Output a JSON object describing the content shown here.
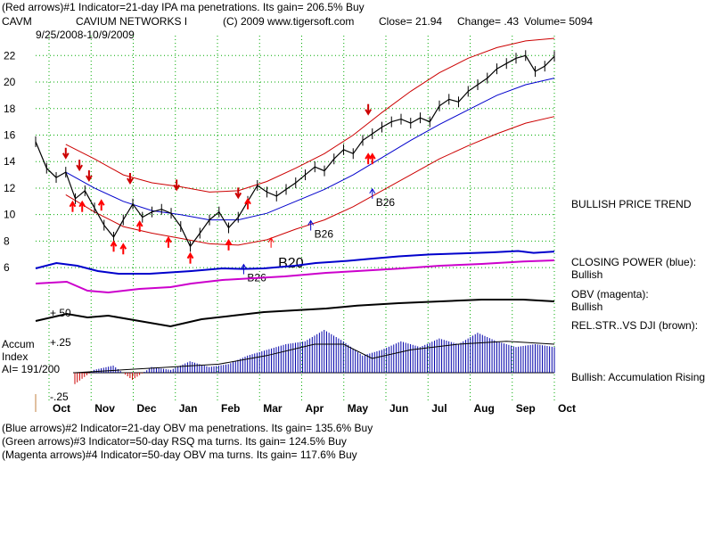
{
  "header": {
    "line1": "(Red arrows)#1 Indicator=21-day IPA ma penetrations. Its gain= 206.5% Buy",
    "symbol": "CAVM",
    "company": "CAVIUM NETWORKS I",
    "copyright": "(C) 2009 www.tigersoft.com",
    "close": "Close= 21.94",
    "change": "Change= .43",
    "volume": "Volume= 5094",
    "date_range": "9/25/2008-10/9/2009"
  },
  "footer": {
    "line1": "(Blue arrows)#2 Indicator=21-day OBV ma penetrations. Its gain= 135.6% Buy",
    "line2": "(Green arrows)#3 Indicator=50-day RSQ ma turns. Its gain= 124.5% Buy",
    "line3": "(Magenta arrows)#4 Indicator=50-day OBV ma turns. Its gain= 117.6% Buy"
  },
  "labels": {
    "price_trend": "BULLISH PRICE TREND",
    "closing_power": "CLOSING POWER (blue):",
    "closing_power_state": "Bullish",
    "obv": "OBV (magenta):",
    "obv_state": "Bullish",
    "relstr": "REL.STR..VS DJI (brown):",
    "accum_title1": "Accum",
    "accum_title2": "Index",
    "ai_value": "AI= 191/200",
    "accum_state": "Bullish: Accumulation Rising",
    "accum_plus50": "+.50",
    "accum_plus25": "+.25",
    "accum_minus25": "-.25"
  },
  "colors": {
    "price": "#000000",
    "bands": "#cc0000",
    "ma": "#0000cc",
    "closing_power": "#0000cc",
    "obv": "#cc00cc",
    "relstr": "#000000",
    "grid": "#00aa00",
    "buy_arrow": "#ff0000",
    "sell_arrow": "#cc0000",
    "blue_arrow": "#0000cc",
    "accum": "#0000aa"
  },
  "chart_data": {
    "type": "line",
    "ylim": [
      5,
      23.5
    ],
    "yticks": [
      6,
      8,
      10,
      12,
      14,
      16,
      18,
      20,
      22
    ],
    "months": [
      "Oct",
      "Nov",
      "Dec",
      "Jan",
      "Feb",
      "Mar",
      "Apr",
      "May",
      "Jun",
      "Jul",
      "Aug",
      "Sep",
      "Oct"
    ],
    "x_start": "2008-09-25",
    "x_end": "2009-10-09",
    "price": {
      "name": "",
      "points": [
        [
          "2008-09-25",
          15.5
        ],
        [
          "2008-10-03",
          13.5
        ],
        [
          "2008-10-10",
          12.8
        ],
        [
          "2008-10-17",
          13.2
        ],
        [
          "2008-10-24",
          11.2
        ],
        [
          "2008-10-31",
          11.8
        ],
        [
          "2008-11-07",
          10.5
        ],
        [
          "2008-11-14",
          9.2
        ],
        [
          "2008-11-21",
          8.3
        ],
        [
          "2008-11-28",
          9.6
        ],
        [
          "2008-12-05",
          10.8
        ],
        [
          "2008-12-12",
          9.8
        ],
        [
          "2008-12-19",
          10.2
        ],
        [
          "2008-12-26",
          10.4
        ],
        [
          "2009-01-02",
          10.1
        ],
        [
          "2009-01-09",
          9.1
        ],
        [
          "2009-01-16",
          7.6
        ],
        [
          "2009-01-23",
          8.6
        ],
        [
          "2009-01-30",
          9.6
        ],
        [
          "2009-02-06",
          10.2
        ],
        [
          "2009-02-13",
          9.0
        ],
        [
          "2009-02-20",
          9.8
        ],
        [
          "2009-02-27",
          11.0
        ],
        [
          "2009-03-06",
          12.2
        ],
        [
          "2009-03-13",
          11.7
        ],
        [
          "2009-03-20",
          11.4
        ],
        [
          "2009-03-27",
          11.9
        ],
        [
          "2009-04-03",
          12.4
        ],
        [
          "2009-04-10",
          13.0
        ],
        [
          "2009-04-17",
          13.6
        ],
        [
          "2009-04-24",
          13.3
        ],
        [
          "2009-05-01",
          14.2
        ],
        [
          "2009-05-08",
          14.9
        ],
        [
          "2009-05-15",
          14.6
        ],
        [
          "2009-05-22",
          15.6
        ],
        [
          "2009-05-29",
          16.1
        ],
        [
          "2009-06-05",
          16.6
        ],
        [
          "2009-06-12",
          17.0
        ],
        [
          "2009-06-19",
          17.2
        ],
        [
          "2009-06-26",
          16.9
        ],
        [
          "2009-07-03",
          17.3
        ],
        [
          "2009-07-10",
          17.0
        ],
        [
          "2009-07-17",
          18.2
        ],
        [
          "2009-07-24",
          18.7
        ],
        [
          "2009-07-31",
          18.5
        ],
        [
          "2009-08-07",
          19.3
        ],
        [
          "2009-08-14",
          19.8
        ],
        [
          "2009-08-21",
          20.3
        ],
        [
          "2009-08-28",
          21.0
        ],
        [
          "2009-09-04",
          21.4
        ],
        [
          "2009-09-11",
          21.8
        ],
        [
          "2009-09-18",
          22.0
        ],
        [
          "2009-09-25",
          20.8
        ],
        [
          "2009-10-02",
          21.2
        ],
        [
          "2009-10-09",
          21.94
        ]
      ]
    },
    "ma": {
      "name": "",
      "points": [
        [
          "2008-10-17",
          13.2
        ],
        [
          "2008-11-07",
          12.0
        ],
        [
          "2008-11-28",
          11.0
        ],
        [
          "2008-12-19",
          10.3
        ],
        [
          "2009-01-09",
          10.0
        ],
        [
          "2009-01-30",
          9.6
        ],
        [
          "2009-02-20",
          9.6
        ],
        [
          "2009-03-13",
          10.1
        ],
        [
          "2009-04-03",
          11.0
        ],
        [
          "2009-04-24",
          11.9
        ],
        [
          "2009-05-15",
          13.0
        ],
        [
          "2009-06-05",
          14.3
        ],
        [
          "2009-06-26",
          15.6
        ],
        [
          "2009-07-17",
          16.8
        ],
        [
          "2009-08-07",
          17.9
        ],
        [
          "2009-08-28",
          19.0
        ],
        [
          "2009-09-18",
          19.8
        ],
        [
          "2009-10-09",
          20.3
        ]
      ]
    },
    "upper_band": {
      "name": "",
      "points": [
        [
          "2008-10-17",
          15.3
        ],
        [
          "2008-11-07",
          14.2
        ],
        [
          "2008-11-28",
          13.0
        ],
        [
          "2008-12-19",
          12.4
        ],
        [
          "2009-01-09",
          12.1
        ],
        [
          "2009-01-30",
          11.7
        ],
        [
          "2009-02-20",
          11.8
        ],
        [
          "2009-03-13",
          12.5
        ],
        [
          "2009-04-03",
          13.5
        ],
        [
          "2009-04-24",
          14.6
        ],
        [
          "2009-05-15",
          16.0
        ],
        [
          "2009-06-05",
          17.7
        ],
        [
          "2009-06-26",
          19.3
        ],
        [
          "2009-07-17",
          20.7
        ],
        [
          "2009-08-07",
          21.8
        ],
        [
          "2009-08-28",
          22.6
        ],
        [
          "2009-09-18",
          23.1
        ],
        [
          "2009-10-09",
          23.3
        ]
      ]
    },
    "lower_band": {
      "name": "",
      "points": [
        [
          "2008-10-17",
          11.5
        ],
        [
          "2008-11-07",
          10.2
        ],
        [
          "2008-11-28",
          9.1
        ],
        [
          "2008-12-19",
          8.6
        ],
        [
          "2009-01-09",
          8.2
        ],
        [
          "2009-01-30",
          7.8
        ],
        [
          "2009-02-20",
          7.7
        ],
        [
          "2009-03-13",
          8.1
        ],
        [
          "2009-04-03",
          8.9
        ],
        [
          "2009-04-24",
          9.6
        ],
        [
          "2009-05-15",
          10.6
        ],
        [
          "2009-06-05",
          11.8
        ],
        [
          "2009-06-26",
          13.0
        ],
        [
          "2009-07-17",
          14.2
        ],
        [
          "2009-08-07",
          15.2
        ],
        [
          "2009-08-28",
          16.1
        ],
        [
          "2009-09-18",
          16.9
        ],
        [
          "2009-10-09",
          17.4
        ]
      ]
    },
    "red_up_arrows": [
      [
        "2008-10-22",
        10.2
      ],
      [
        "2008-10-29",
        10.2
      ],
      [
        "2008-11-12",
        10.3
      ],
      [
        "2008-11-21",
        7.2
      ],
      [
        "2008-11-28",
        7.0
      ],
      [
        "2008-12-10",
        8.7
      ],
      [
        "2008-12-31",
        7.5
      ],
      [
        "2009-01-16",
        6.3
      ],
      [
        "2009-02-13",
        7.3
      ],
      [
        "2009-02-27",
        10.4
      ],
      [
        "2009-05-26",
        13.8
      ],
      [
        "2009-05-29",
        13.8
      ]
    ],
    "red_down_arrows": [
      [
        "2008-10-17",
        14.3
      ],
      [
        "2008-10-27",
        13.4
      ],
      [
        "2008-11-03",
        12.6
      ],
      [
        "2008-12-03",
        12.4
      ],
      [
        "2009-01-06",
        11.9
      ],
      [
        "2009-02-20",
        11.3
      ],
      [
        "2009-05-26",
        17.6
      ]
    ],
    "blue_up_arrows": [
      {
        "date": "2009-02-24",
        "value": 5.5,
        "label": "B26"
      },
      {
        "date": "2009-04-14",
        "value": 8.8,
        "label": "B26"
      },
      {
        "date": "2009-05-29",
        "value": 11.2,
        "label": "B26"
      }
    ],
    "thin_red_up_arrow": {
      "date": "2009-03-16",
      "value": 7.5,
      "label": "B20"
    },
    "closing_power": [
      [
        0,
        0.3
      ],
      [
        0.04,
        0.5
      ],
      [
        0.08,
        0.4
      ],
      [
        0.12,
        0.2
      ],
      [
        0.16,
        0.1
      ],
      [
        0.22,
        0.1
      ],
      [
        0.26,
        0.15
      ],
      [
        0.3,
        0.2
      ],
      [
        0.36,
        0.3
      ],
      [
        0.4,
        0.28
      ],
      [
        0.44,
        0.3
      ],
      [
        0.5,
        0.4
      ],
      [
        0.54,
        0.5
      ],
      [
        0.6,
        0.58
      ],
      [
        0.64,
        0.65
      ],
      [
        0.7,
        0.75
      ],
      [
        0.76,
        0.82
      ],
      [
        0.82,
        0.86
      ],
      [
        0.88,
        0.9
      ],
      [
        0.93,
        0.95
      ],
      [
        0.96,
        0.88
      ],
      [
        1.0,
        0.93
      ]
    ],
    "obv": [
      [
        0,
        0.3
      ],
      [
        0.06,
        0.35
      ],
      [
        0.1,
        0.1
      ],
      [
        0.14,
        0.05
      ],
      [
        0.2,
        0.15
      ],
      [
        0.26,
        0.2
      ],
      [
        0.3,
        0.3
      ],
      [
        0.36,
        0.4
      ],
      [
        0.42,
        0.45
      ],
      [
        0.48,
        0.5
      ],
      [
        0.56,
        0.6
      ],
      [
        0.62,
        0.65
      ],
      [
        0.7,
        0.72
      ],
      [
        0.78,
        0.8
      ],
      [
        0.86,
        0.85
      ],
      [
        0.94,
        0.92
      ],
      [
        1.0,
        0.95
      ]
    ],
    "relstr": [
      [
        0,
        0.25
      ],
      [
        0.06,
        0.45
      ],
      [
        0.1,
        0.35
      ],
      [
        0.14,
        0.4
      ],
      [
        0.2,
        0.25
      ],
      [
        0.26,
        0.1
      ],
      [
        0.32,
        0.3
      ],
      [
        0.38,
        0.4
      ],
      [
        0.44,
        0.5
      ],
      [
        0.5,
        0.55
      ],
      [
        0.56,
        0.6
      ],
      [
        0.62,
        0.68
      ],
      [
        0.7,
        0.75
      ],
      [
        0.78,
        0.8
      ],
      [
        0.86,
        0.85
      ],
      [
        0.94,
        0.85
      ],
      [
        1.0,
        0.8
      ]
    ],
    "accum": [
      [
        0,
        -0.08
      ],
      [
        0.04,
        0.02
      ],
      [
        0.08,
        0.05
      ],
      [
        0.12,
        -0.05
      ],
      [
        0.16,
        0.04
      ],
      [
        0.2,
        0.02
      ],
      [
        0.24,
        0.08
      ],
      [
        0.28,
        0.04
      ],
      [
        0.32,
        0.06
      ],
      [
        0.36,
        0.12
      ],
      [
        0.4,
        0.16
      ],
      [
        0.44,
        0.2
      ],
      [
        0.48,
        0.22
      ],
      [
        0.52,
        0.3
      ],
      [
        0.56,
        0.22
      ],
      [
        0.6,
        0.12
      ],
      [
        0.64,
        0.16
      ],
      [
        0.68,
        0.22
      ],
      [
        0.72,
        0.18
      ],
      [
        0.76,
        0.24
      ],
      [
        0.8,
        0.2
      ],
      [
        0.84,
        0.28
      ],
      [
        0.88,
        0.22
      ],
      [
        0.92,
        0.18
      ],
      [
        0.96,
        0.2
      ],
      [
        1.0,
        0.18
      ]
    ],
    "accum_ma": [
      [
        0,
        0.0
      ],
      [
        0.1,
        0.02
      ],
      [
        0.2,
        0.04
      ],
      [
        0.3,
        0.06
      ],
      [
        0.4,
        0.12
      ],
      [
        0.5,
        0.2
      ],
      [
        0.56,
        0.2
      ],
      [
        0.62,
        0.1
      ],
      [
        0.7,
        0.16
      ],
      [
        0.8,
        0.2
      ],
      [
        0.9,
        0.22
      ],
      [
        1.0,
        0.2
      ]
    ]
  }
}
